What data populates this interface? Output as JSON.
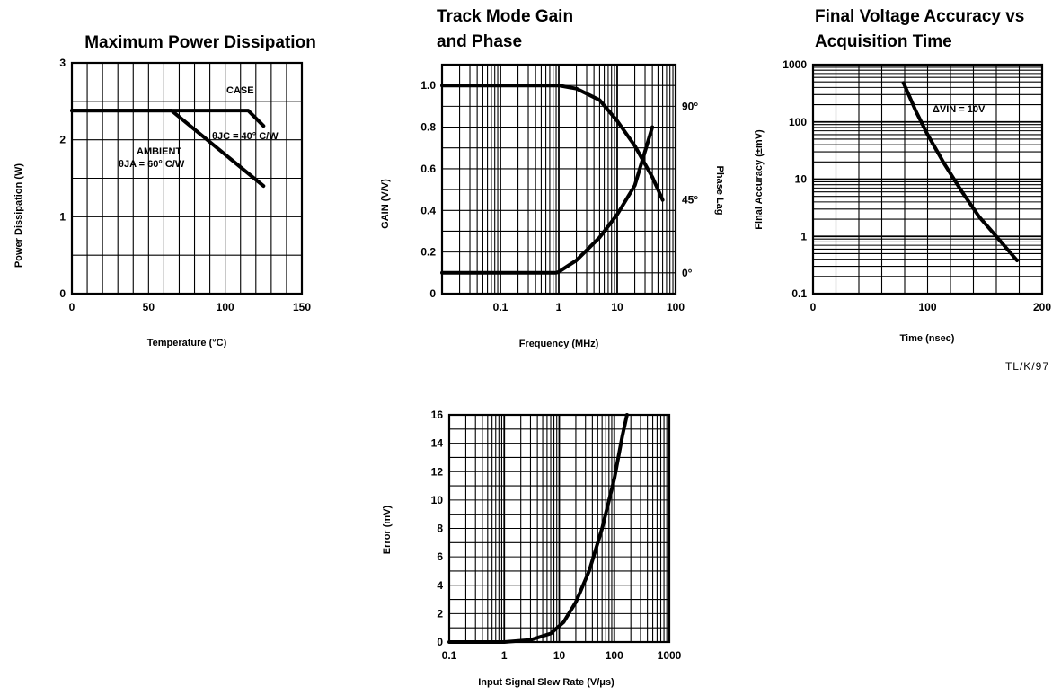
{
  "figure_note": "TL/K/97",
  "chart_data": [
    {
      "type": "line",
      "title_lines": [
        "Maximum Power Dissipation"
      ],
      "xlabel": "Temperature (°C)",
      "ylabel": "Power Dissipation (W)",
      "xlim": [
        0,
        150
      ],
      "ylim": [
        0,
        3
      ],
      "x_ticks": [
        "0",
        "50",
        "100",
        "150"
      ],
      "y_ticks": [
        "0",
        "1",
        "2",
        "3"
      ],
      "grid": true,
      "series": [
        {
          "name": "CASE",
          "x": [
            0,
            115,
            125
          ],
          "y": [
            2.38,
            2.38,
            2.18
          ]
        },
        {
          "name": "AMBIENT",
          "x": [
            0,
            65,
            125
          ],
          "y": [
            2.38,
            2.38,
            1.4
          ]
        }
      ],
      "annotations": [
        {
          "text": "CASE"
        },
        {
          "text": "θJC = 40° C/W"
        },
        {
          "text": "AMBIENT"
        },
        {
          "text": "θJA = 60° C/W"
        }
      ]
    },
    {
      "type": "line",
      "title_lines": [
        "Track Mode Gain",
        "and Phase"
      ],
      "xlabel": "Frequency (MHz)",
      "ylabel": "GAIN (V/V)",
      "y2label": "Phase Lag",
      "x_scale": "log",
      "xlim": [
        0.01,
        100
      ],
      "ylim": [
        0,
        1.1
      ],
      "x_ticks": [
        "0.1",
        "1",
        "10",
        "100"
      ],
      "y_ticks": [
        "0",
        "0.2",
        "0.4",
        "0.6",
        "0.8",
        "1.0"
      ],
      "y2_ticks": [
        "0°",
        "45°",
        "90°"
      ],
      "grid": true,
      "series": [
        {
          "name": "Gain",
          "x": [
            0.01,
            0.5,
            1,
            2,
            5,
            10,
            20,
            40,
            60
          ],
          "y": [
            1.0,
            1.0,
            1.0,
            0.985,
            0.93,
            0.83,
            0.71,
            0.56,
            0.45
          ]
        },
        {
          "name": "Phase",
          "x": [
            0.01,
            0.9,
            1,
            2,
            5,
            10,
            20,
            40
          ],
          "y": [
            0.1,
            0.1,
            0.105,
            0.16,
            0.27,
            0.38,
            0.52,
            0.8
          ]
        }
      ]
    },
    {
      "type": "line",
      "title_lines": [
        "Final Voltage Accuracy vs",
        "Acquisition Time"
      ],
      "xlabel": "Time (nsec)",
      "ylabel": "Final Accuracy (±mV)",
      "y_scale": "log",
      "xlim": [
        0,
        200
      ],
      "ylim": [
        0.1,
        1000
      ],
      "x_ticks": [
        "0",
        "100",
        "200"
      ],
      "y_ticks": [
        "0.1",
        "1",
        "10",
        "100",
        "1000"
      ],
      "grid": true,
      "series": [
        {
          "name": "ΔVIN = 10V",
          "x": [
            79,
            90,
            100,
            115,
            130,
            145,
            160,
            178
          ],
          "y": [
            480,
            150,
            60,
            18,
            6,
            2.2,
            1.0,
            0.38
          ]
        }
      ],
      "annotations": [
        {
          "text": "ΔVIN = 10V"
        }
      ]
    },
    {
      "type": "line",
      "title_lines": [],
      "xlabel": "Input Signal Slew Rate (V/μs)",
      "ylabel": "Error (mV)",
      "x_scale": "log",
      "xlim": [
        0.1,
        1000
      ],
      "ylim": [
        0,
        16
      ],
      "x_ticks": [
        "0.1",
        "1",
        "10",
        "100",
        "1000"
      ],
      "y_ticks": [
        "0",
        "2",
        "4",
        "6",
        "8",
        "10",
        "12",
        "14",
        "16"
      ],
      "grid": true,
      "series": [
        {
          "name": "Error",
          "x": [
            0.1,
            1,
            3,
            7,
            12,
            20,
            35,
            60,
            100,
            140,
            170
          ],
          "y": [
            0,
            0,
            0.15,
            0.6,
            1.4,
            2.8,
            5.0,
            8.0,
            11.5,
            14.5,
            16.0
          ]
        }
      ]
    }
  ]
}
